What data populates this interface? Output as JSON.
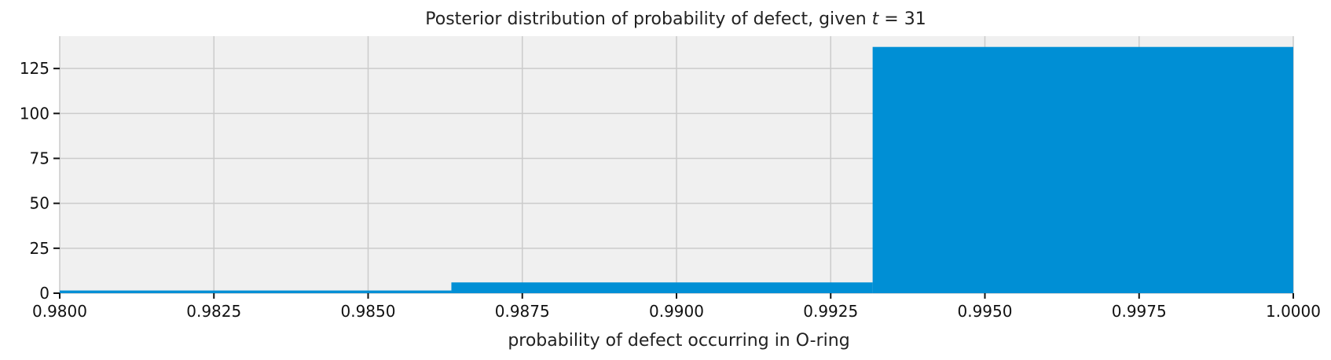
{
  "chart_data": {
    "type": "bar",
    "title": "Posterior distribution of probability of defect, given t = 31",
    "title_parts": {
      "prefix": "Posterior distribution of probability of defect, given ",
      "var": "t",
      "suffix": " = 31"
    },
    "xlabel": "probability of defect occurring in O-ring",
    "ylabel": "",
    "xlim": [
      0.98,
      1.0
    ],
    "ylim": [
      0,
      143
    ],
    "x_ticks": [
      "0.9800",
      "0.9825",
      "0.9850",
      "0.9875",
      "0.9900",
      "0.9925",
      "0.9950",
      "0.9975",
      "1.0000"
    ],
    "x_tick_values": [
      0.98,
      0.9825,
      0.985,
      0.9875,
      0.99,
      0.9925,
      0.995,
      0.9975,
      1.0
    ],
    "y_ticks": [
      0,
      25,
      50,
      75,
      100,
      125
    ],
    "grid": true,
    "bars": [
      {
        "x0": 0.9795,
        "x1": 0.98635,
        "value": 1.5
      },
      {
        "x0": 0.98635,
        "x1": 0.99318,
        "value": 6
      },
      {
        "x0": 0.99318,
        "x1": 1.0,
        "value": 137
      }
    ],
    "colors": {
      "bar": "#008fd5",
      "plot_bg": "#f0f0f0",
      "grid": "#cbcbcb"
    }
  }
}
